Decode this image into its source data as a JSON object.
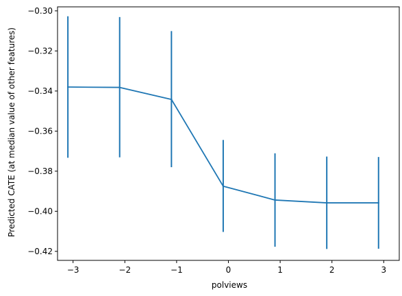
{
  "chart_data": {
    "type": "line",
    "title": "",
    "xlabel": "polviews",
    "ylabel": "Predicted CATE (at median value of other features)",
    "xlim": [
      -3.3,
      3.3
    ],
    "ylim": [
      -0.4245,
      -0.298
    ],
    "xticks": [
      -3,
      -2,
      -1,
      0,
      1,
      2,
      3
    ],
    "xtick_labels": [
      "−3",
      "−2",
      "−1",
      "0",
      "1",
      "2",
      "3"
    ],
    "yticks": [
      -0.42,
      -0.4,
      -0.38,
      -0.36,
      -0.34,
      -0.32,
      -0.3
    ],
    "ytick_labels": [
      "−0.42",
      "−0.40",
      "−0.38",
      "−0.36",
      "−0.34",
      "−0.32",
      "−0.30"
    ],
    "grid": false,
    "series": [
      {
        "x": [
          -3.1,
          -2.1,
          -1.1,
          -0.1,
          0.9,
          1.9,
          2.9
        ],
        "y": [
          -0.338,
          -0.3382,
          -0.3442,
          -0.3875,
          -0.3944,
          -0.3958,
          -0.3958
        ],
        "err_low": [
          -0.3733,
          -0.3731,
          -0.378,
          -0.4103,
          -0.4177,
          -0.4188,
          -0.4187
        ],
        "err_high": [
          -0.3027,
          -0.3031,
          -0.3101,
          -0.3644,
          -0.3711,
          -0.3727,
          -0.3729
        ],
        "color": "#1f77b4"
      }
    ]
  }
}
